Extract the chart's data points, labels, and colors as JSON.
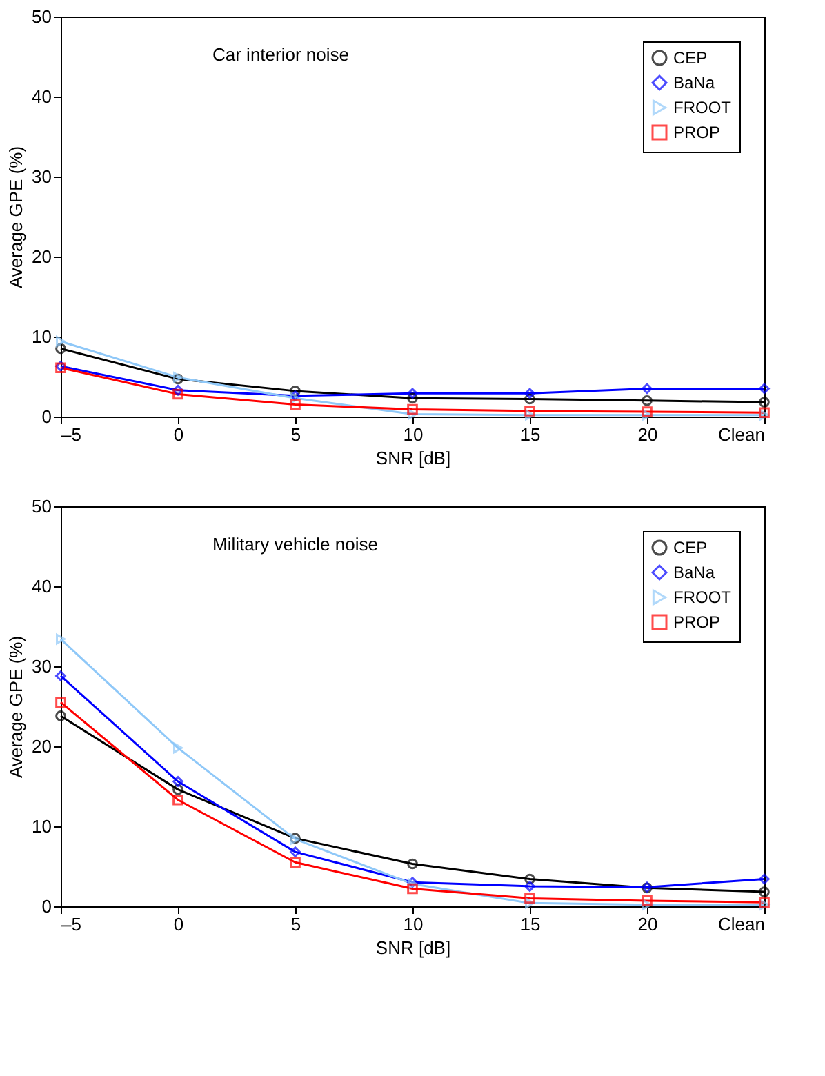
{
  "chart_data": [
    {
      "type": "line",
      "annotations": [
        "Car interior noise"
      ],
      "xlabel": "SNR [dB]",
      "ylabel": "Average GPE (%)",
      "categories": [
        "–5",
        "0",
        "5",
        "10",
        "15",
        "20",
        "Clean"
      ],
      "ylim": [
        0,
        50
      ],
      "yticks": [
        0,
        10,
        20,
        30,
        40,
        50
      ],
      "grid": false,
      "legend": "top right",
      "line_style": "solid",
      "series": [
        {
          "name": "CEP",
          "color": "#000000",
          "marker": "circle",
          "values": [
            8.5,
            4.7,
            3.2,
            2.3,
            2.2,
            2.0,
            1.8
          ]
        },
        {
          "name": "BaNa",
          "color": "#0000ff",
          "marker": "diamond",
          "values": [
            6.3,
            3.3,
            2.6,
            2.9,
            2.9,
            3.5,
            3.5
          ]
        },
        {
          "name": "FROOT",
          "color": "#8fc8f8",
          "marker": "triangle-right",
          "values": [
            9.4,
            4.9,
            2.3,
            0.3,
            0.2,
            0.2,
            0.2
          ]
        },
        {
          "name": "PROP",
          "color": "#ff0000",
          "marker": "square",
          "values": [
            6.1,
            2.8,
            1.5,
            0.9,
            0.7,
            0.6,
            0.5
          ]
        }
      ]
    },
    {
      "type": "line",
      "annotations": [
        "Military vehicle noise"
      ],
      "xlabel": "SNR [dB]",
      "ylabel": "Average GPE (%)",
      "categories": [
        "–5",
        "0",
        "5",
        "10",
        "15",
        "20",
        "Clean"
      ],
      "ylim": [
        0,
        50
      ],
      "yticks": [
        0,
        10,
        20,
        30,
        40,
        50
      ],
      "grid": false,
      "legend": "top right",
      "line_style": "solid",
      "series": [
        {
          "name": "CEP",
          "color": "#000000",
          "marker": "circle",
          "values": [
            23.8,
            14.6,
            8.5,
            5.3,
            3.4,
            2.3,
            1.8
          ]
        },
        {
          "name": "BaNa",
          "color": "#0000ff",
          "marker": "diamond",
          "values": [
            28.8,
            15.6,
            6.8,
            3.0,
            2.5,
            2.4,
            3.4
          ]
        },
        {
          "name": "FROOT",
          "color": "#8fc8f8",
          "marker": "triangle-right",
          "values": [
            33.4,
            19.8,
            8.4,
            2.8,
            0.4,
            0.2,
            0.2
          ]
        },
        {
          "name": "PROP",
          "color": "#ff0000",
          "marker": "square",
          "values": [
            25.5,
            13.3,
            5.5,
            2.2,
            1.0,
            0.7,
            0.5
          ]
        }
      ]
    }
  ]
}
